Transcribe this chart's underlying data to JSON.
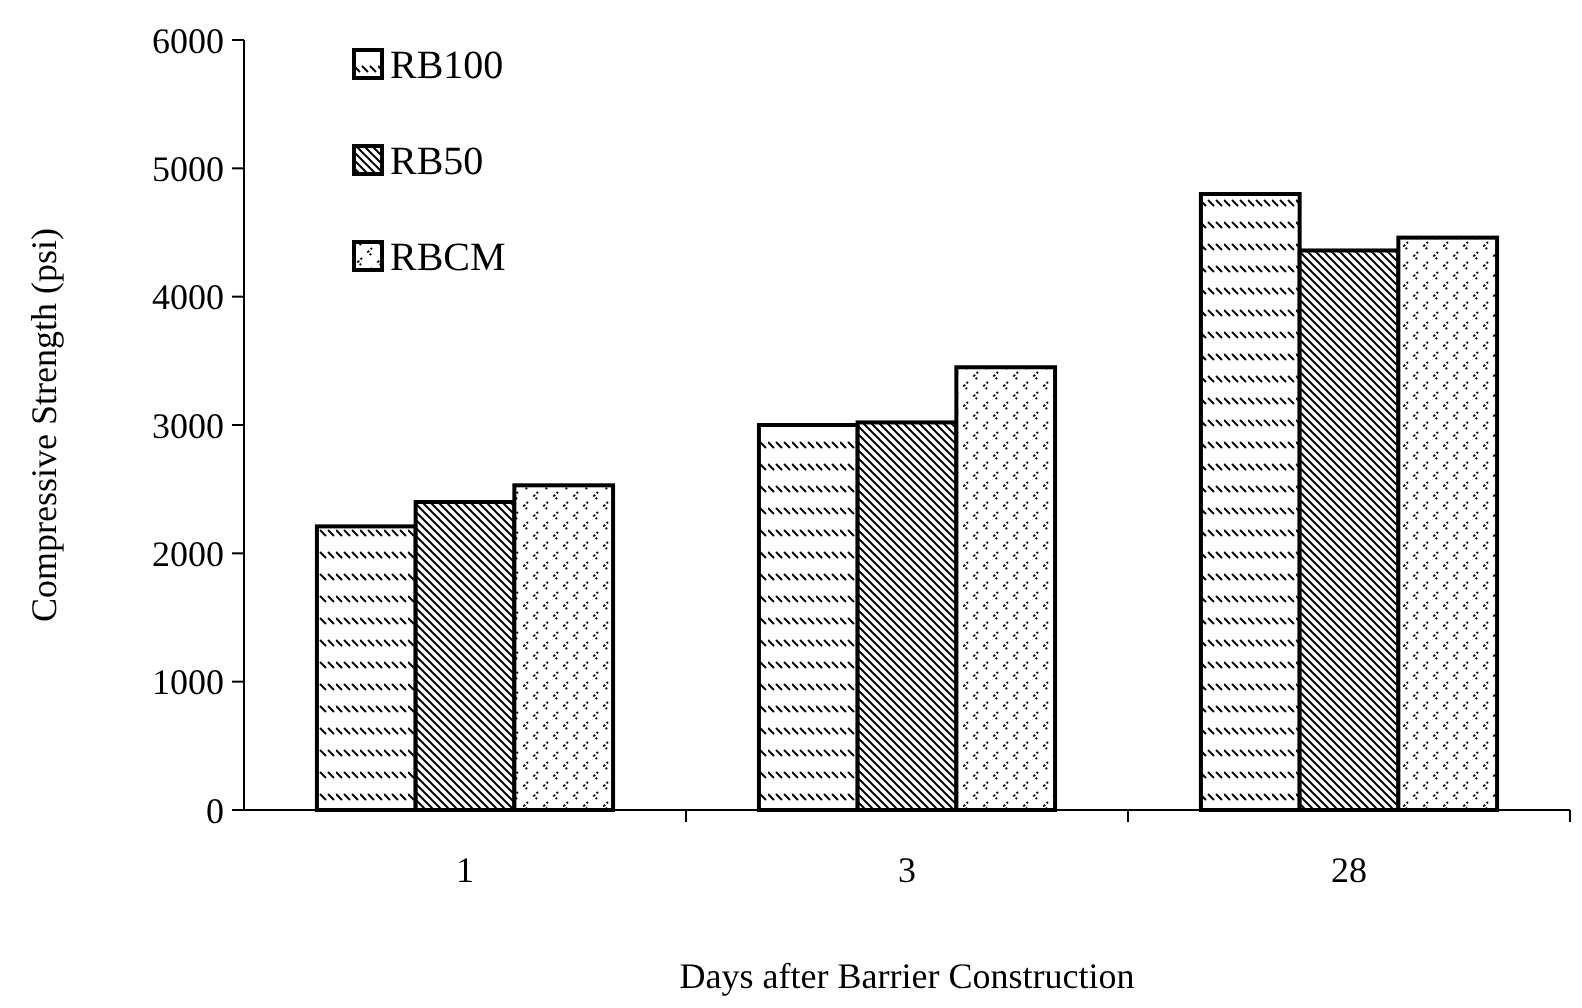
{
  "chart_data": {
    "type": "bar",
    "xlabel": "Days after Barrier Construction",
    "ylabel": "Compressive Strength (psi)",
    "categories": [
      "1",
      "3",
      "28"
    ],
    "series": [
      {
        "name": "RB100",
        "color": "#000000",
        "values": [
          2210,
          3000,
          4800
        ]
      },
      {
        "name": "RB50",
        "color": "#000000",
        "values": [
          2400,
          3020,
          4360
        ]
      },
      {
        "name": "RBCM",
        "color": "#000000",
        "values": [
          2530,
          3450,
          4460
        ]
      }
    ],
    "ylim": [
      0,
      6000
    ],
    "yticks": [
      0,
      1000,
      2000,
      3000,
      4000,
      5000,
      6000
    ],
    "grid": false,
    "legend": "top left"
  }
}
